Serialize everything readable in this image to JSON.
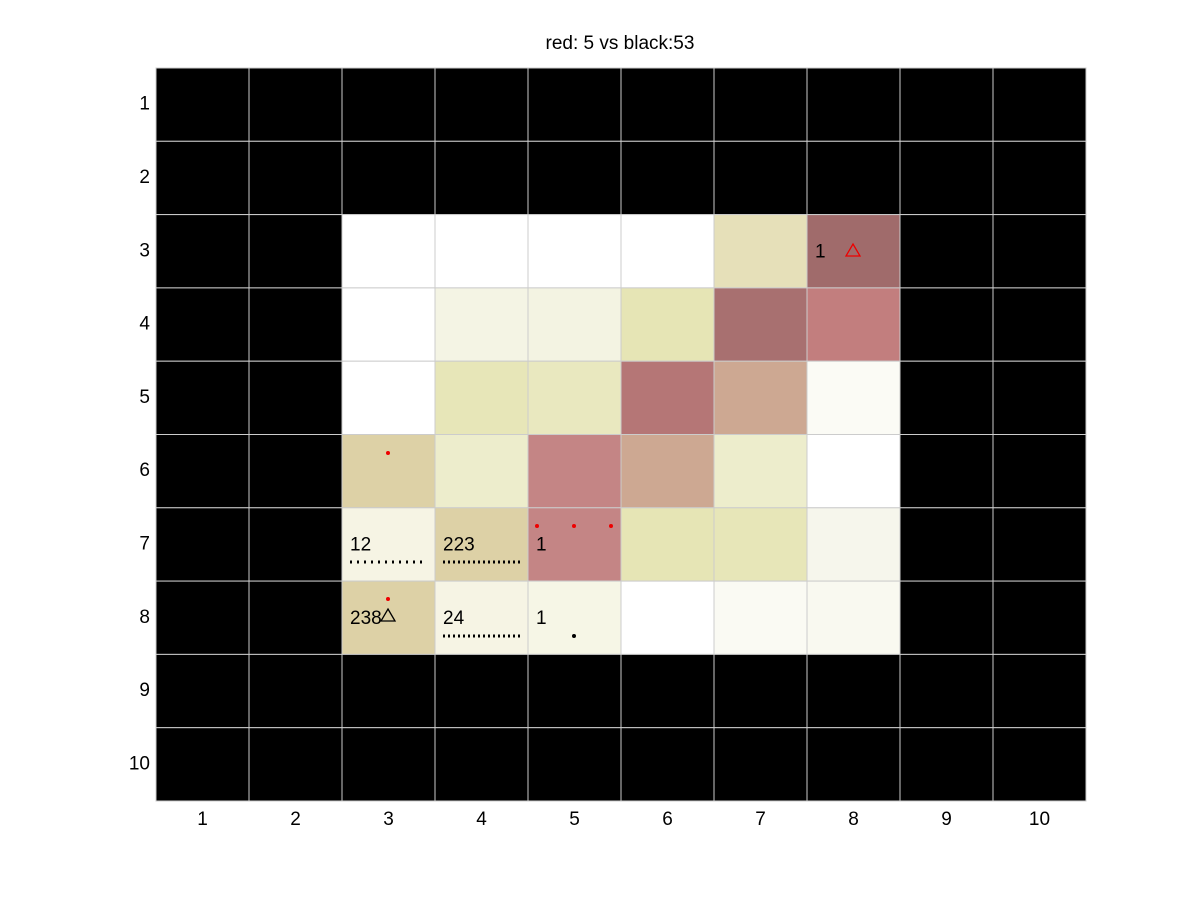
{
  "title": "red: 5 vs black:53",
  "xticks": [
    1,
    2,
    3,
    4,
    5,
    6,
    7,
    8,
    9,
    10
  ],
  "yticks": [
    1,
    2,
    3,
    4,
    5,
    6,
    7,
    8,
    9,
    10
  ],
  "board": {
    "rows": [
      [
        "#000000",
        "#000000",
        "#000000",
        "#000000",
        "#000000",
        "#000000",
        "#000000",
        "#000000",
        "#000000",
        "#000000"
      ],
      [
        "#000000",
        "#000000",
        "#000000",
        "#000000",
        "#000000",
        "#000000",
        "#000000",
        "#000000",
        "#000000",
        "#000000"
      ],
      [
        "#000000",
        "#000000",
        "#ffffff",
        "#ffffff",
        "#ffffff",
        "#ffffff",
        "#e6e0b9",
        {
          "color": "#a06b6b",
          "text": "1"
        },
        "#000000",
        "#000000"
      ],
      [
        "#000000",
        "#000000",
        "#ffffff",
        "#f4f4e4",
        "#f3f3e2",
        "#e6e5b5",
        "#a87070",
        "#c27e7e",
        "#000000",
        "#000000"
      ],
      [
        "#000000",
        "#000000",
        "#ffffff",
        "#e7e6b8",
        "#e9e8bf",
        "#b57676",
        "#cda892",
        "#fbfbf5",
        "#000000",
        "#000000"
      ],
      [
        "#000000",
        "#000000",
        "#ddd1a6",
        "#ededcc",
        "#c48585",
        "#cda892",
        "#ededcc",
        "#ffffff",
        "#000000",
        "#000000"
      ],
      [
        "#000000",
        "#000000",
        {
          "color": "#f6f4e4",
          "text": "12"
        },
        {
          "color": "#ddd1a6",
          "text": "223"
        },
        {
          "color": "#c48585",
          "text": "1"
        },
        "#e6e5b5",
        "#e7e6b8",
        "#f6f6ec",
        "#000000",
        "#000000"
      ],
      [
        "#000000",
        "#000000",
        {
          "color": "#ddd1a6",
          "text": "238"
        },
        {
          "color": "#f6f4e4",
          "text": "24"
        },
        {
          "color": "#f6f6e6",
          "text": "1"
        },
        "#ffffff",
        "#fafaf3",
        "#f9f9f0",
        "#000000",
        "#000000"
      ],
      [
        "#000000",
        "#000000",
        "#000000",
        "#000000",
        "#000000",
        "#000000",
        "#000000",
        "#000000",
        "#000000",
        "#000000"
      ],
      [
        "#000000",
        "#000000",
        "#000000",
        "#000000",
        "#000000",
        "#000000",
        "#000000",
        "#000000",
        "#000000",
        "#000000"
      ]
    ]
  }
}
